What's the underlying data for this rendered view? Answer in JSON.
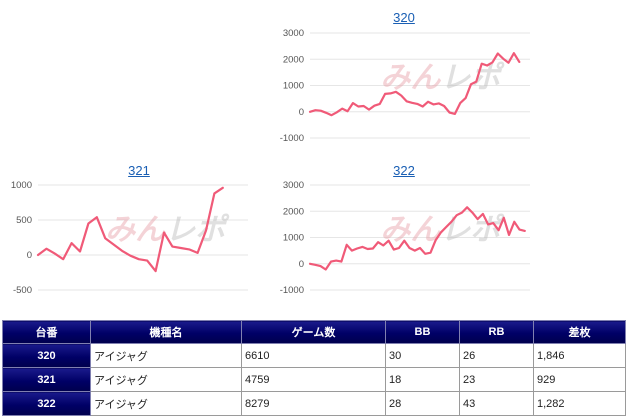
{
  "watermark": "みんレポ",
  "colors": {
    "line": "#f05a78",
    "grid": "#e6e6e6",
    "header_bg": "#000066",
    "link": "#1a5fb4"
  },
  "chart_data": [
    {
      "type": "line",
      "title": "320",
      "y_ticks": [
        3000,
        2000,
        1000,
        0,
        -1000
      ],
      "ylim": [
        -1000,
        3000
      ],
      "x": [
        0,
        1,
        2,
        3,
        4,
        5,
        6,
        7,
        8,
        9,
        10,
        11,
        12,
        13,
        14,
        15,
        16,
        17,
        18,
        19,
        20,
        21,
        22,
        23,
        24,
        25,
        26,
        27,
        28,
        29,
        30,
        31,
        32,
        33,
        34,
        35,
        36,
        37,
        38,
        39,
        40,
        41
      ],
      "values": [
        0,
        60,
        40,
        -40,
        -130,
        -20,
        120,
        20,
        330,
        200,
        220,
        80,
        230,
        300,
        680,
        700,
        760,
        620,
        400,
        340,
        300,
        200,
        380,
        280,
        320,
        220,
        -30,
        -80,
        330,
        520,
        1050,
        1150,
        1830,
        1760,
        1880,
        2220,
        2020,
        1870,
        2230,
        1900,
        null,
        null
      ]
    },
    {
      "type": "line",
      "title": "321",
      "y_ticks": [
        1000,
        500,
        0,
        -500
      ],
      "ylim": [
        -500,
        1000
      ],
      "x": [
        0,
        1,
        2,
        3,
        4,
        5,
        6,
        7,
        8,
        9,
        10,
        11,
        12,
        13,
        14,
        15,
        16,
        17,
        18,
        19,
        20,
        21,
        22,
        23,
        24,
        25
      ],
      "values": [
        0,
        90,
        20,
        -60,
        170,
        50,
        450,
        540,
        240,
        150,
        60,
        -10,
        -60,
        -80,
        -230,
        320,
        120,
        100,
        80,
        30,
        350,
        880,
        960,
        null,
        null,
        null
      ]
    },
    {
      "type": "line",
      "title": "322",
      "y_ticks": [
        3000,
        2000,
        1000,
        0,
        -1000
      ],
      "ylim": [
        -1000,
        3000
      ],
      "x": [
        0,
        1,
        2,
        3,
        4,
        5,
        6,
        7,
        8,
        9,
        10,
        11,
        12,
        13,
        14,
        15,
        16,
        17,
        18,
        19,
        20,
        21,
        22,
        23,
        24,
        25,
        26,
        27,
        28,
        29,
        30,
        31,
        32,
        33,
        34,
        35,
        36,
        37,
        38,
        39,
        40,
        41,
        42
      ],
      "values": [
        0,
        -40,
        -90,
        -220,
        80,
        120,
        80,
        720,
        500,
        580,
        640,
        560,
        580,
        820,
        700,
        880,
        540,
        600,
        880,
        600,
        500,
        600,
        380,
        420,
        900,
        1200,
        1400,
        1600,
        1850,
        1950,
        2150,
        1950,
        1700,
        1900,
        1500,
        1550,
        1280,
        1750,
        1100,
        1600,
        1300,
        1250,
        null
      ]
    }
  ],
  "table": {
    "headers": [
      "台番",
      "機種名",
      "ゲーム数",
      "BB",
      "RB",
      "差枚"
    ],
    "rows": [
      {
        "id": "320",
        "machine": "アイジャグ",
        "games": "6610",
        "bb": "30",
        "rb": "26",
        "diff": "1,846"
      },
      {
        "id": "321",
        "machine": "アイジャグ",
        "games": "4759",
        "bb": "18",
        "rb": "23",
        "diff": "929"
      },
      {
        "id": "322",
        "machine": "アイジャグ",
        "games": "8279",
        "bb": "28",
        "rb": "43",
        "diff": "1,282"
      }
    ]
  }
}
